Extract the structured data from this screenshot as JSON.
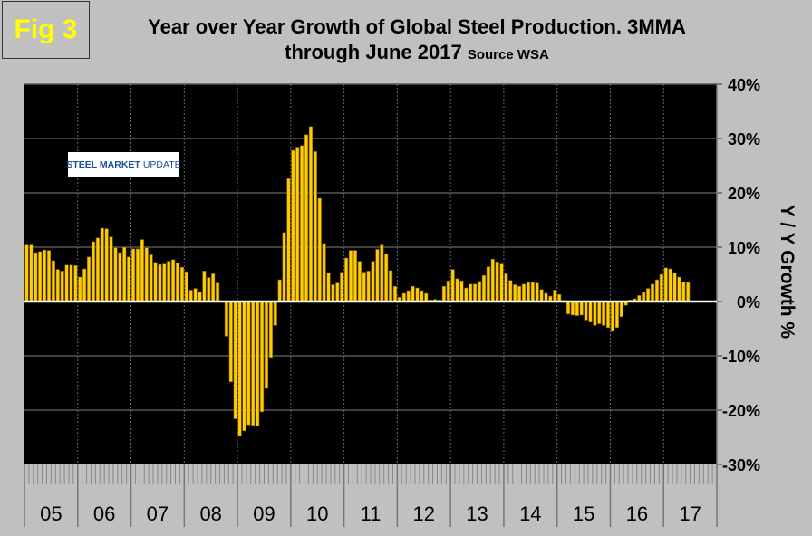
{
  "badge": "Fig 3",
  "title_line1": "Year over Year Growth of Global Steel Production. 3MMA",
  "title_line2": "through June 2017",
  "source": "Source WSA",
  "logo_text": "STEEL MARKET UPDATE",
  "chart_data": {
    "type": "bar",
    "title": "Year over Year Growth of Global Steel Production. 3MMA through June 2017",
    "ylabel": "Y / Y Growth %",
    "xlabel": "",
    "ylim": [
      -30,
      40
    ],
    "yticks": [
      "40%",
      "30%",
      "20%",
      "10%",
      "0%",
      "-10%",
      "-20%",
      "-30%"
    ],
    "ytick_values": [
      40,
      30,
      20,
      10,
      0,
      -10,
      -20,
      -30
    ],
    "y_axis_side": "right",
    "grid": true,
    "bar_color": "#ffcc00",
    "plot_background": "#000000",
    "year_labels": [
      "05",
      "06",
      "07",
      "08",
      "09",
      "10",
      "11",
      "12",
      "13",
      "14",
      "15",
      "16",
      "17"
    ],
    "period": "monthly, Jan 2005 - Jun 2017",
    "values": [
      10.4,
      10.4,
      9.0,
      9.2,
      9.5,
      9.4,
      7.5,
      5.9,
      5.6,
      6.7,
      6.7,
      6.6,
      4.5,
      6.0,
      8.2,
      11.0,
      11.7,
      13.5,
      13.4,
      11.9,
      9.9,
      9.0,
      10.0,
      8.2,
      9.7,
      9.7,
      11.4,
      9.9,
      8.6,
      7.2,
      6.8,
      6.9,
      7.4,
      7.7,
      7.1,
      6.3,
      5.5,
      2.1,
      2.4,
      1.7,
      5.6,
      4.4,
      5.1,
      3.4,
      0.1,
      -6.4,
      -14.8,
      -21.6,
      -24.7,
      -23.8,
      -22.7,
      -22.8,
      -22.9,
      -20.3,
      -16.0,
      -10.3,
      -4.4,
      4.0,
      12.7,
      22.6,
      27.8,
      28.4,
      28.7,
      30.7,
      32.2,
      27.6,
      19.0,
      10.7,
      5.3,
      3.1,
      3.4,
      5.4,
      8.0,
      9.4,
      9.4,
      7.4,
      5.4,
      5.6,
      7.4,
      9.6,
      10.4,
      8.8,
      5.7,
      2.8,
      0.8,
      1.5,
      2.0,
      2.8,
      2.5,
      2.0,
      1.5,
      0.3,
      0.4,
      0.3,
      2.8,
      3.8,
      5.9,
      4.2,
      3.8,
      2.5,
      3.2,
      3.2,
      3.7,
      4.8,
      6.4,
      7.8,
      7.3,
      6.9,
      5.1,
      3.9,
      3.1,
      2.8,
      3.2,
      3.5,
      3.5,
      3.4,
      2.2,
      1.5,
      1.0,
      2.1,
      1.3,
      0.2,
      -2.3,
      -2.5,
      -2.6,
      -2.5,
      -3.4,
      -3.8,
      -4.4,
      -4.1,
      -4.4,
      -4.8,
      -5.5,
      -4.8,
      -2.8,
      -0.7,
      0.3,
      0.5,
      1.1,
      1.7,
      2.4,
      3.2,
      4.0,
      5.0,
      6.2,
      6.0,
      5.3,
      4.5,
      3.6,
      3.5
    ]
  }
}
